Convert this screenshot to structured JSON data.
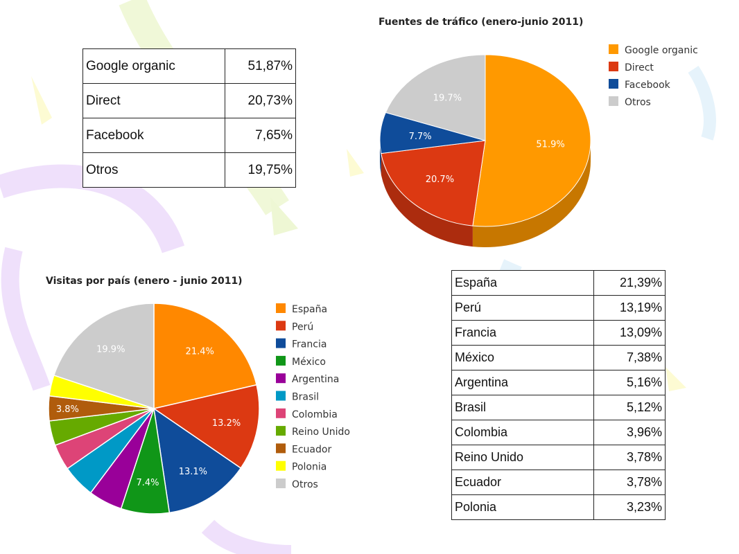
{
  "traffic_table": {
    "rows": [
      {
        "label": "Google organic",
        "value": "51,87%"
      },
      {
        "label": "Direct",
        "value": "20,73%"
      },
      {
        "label": "Facebook",
        "value": "7,65%"
      },
      {
        "label": "Otros",
        "value": "19,75%"
      }
    ]
  },
  "country_table": {
    "rows": [
      {
        "label": "España",
        "value": "21,39%"
      },
      {
        "label": "Perú",
        "value": "13,19%"
      },
      {
        "label": "Francia",
        "value": "13,09%"
      },
      {
        "label": "México",
        "value": "7,38%"
      },
      {
        "label": "Argentina",
        "value": "5,16%"
      },
      {
        "label": "Brasil",
        "value": "5,12%"
      },
      {
        "label": "Colombia",
        "value": "3,96%"
      },
      {
        "label": "Reino Unido",
        "value": "3,78%"
      },
      {
        "label": "Ecuador",
        "value": "3,78%"
      },
      {
        "label": "Polonia",
        "value": "3,23%"
      }
    ]
  },
  "chart_data": [
    {
      "type": "pie",
      "title": "Fuentes de tráfico (enero-junio 2011)",
      "categories": [
        "Google organic",
        "Direct",
        "Facebook",
        "Otros"
      ],
      "values": [
        51.9,
        20.7,
        7.7,
        19.7
      ],
      "data_labels": [
        "51.9%",
        "20.7%",
        "7.7%",
        "19.7%"
      ],
      "colors": [
        "#ff9900",
        "#dc3912",
        "#0f4c9a",
        "#cccccc"
      ],
      "style": "3d",
      "legend_position": "right"
    },
    {
      "type": "pie",
      "title": "Visitas por país (enero - junio 2011)",
      "categories": [
        "España",
        "Perú",
        "Francia",
        "México",
        "Argentina",
        "Brasil",
        "Colombia",
        "Reino Unido",
        "Ecuador",
        "Polonia",
        "Otros"
      ],
      "values": [
        21.4,
        13.2,
        13.1,
        7.4,
        5.2,
        5.1,
        4.0,
        3.8,
        3.8,
        3.2,
        19.9
      ],
      "data_labels": [
        "21.4%",
        "13.2%",
        "13.1%",
        "7.4%",
        "",
        "",
        "",
        "",
        "3.8%",
        "",
        "19.9%"
      ],
      "colors": [
        "#ff8800",
        "#dc3912",
        "#0f4c9a",
        "#109618",
        "#990099",
        "#0099c6",
        "#dd4477",
        "#66aa00",
        "#b05c0c",
        "#ffff00",
        "#cccccc"
      ],
      "legend_position": "right"
    }
  ]
}
